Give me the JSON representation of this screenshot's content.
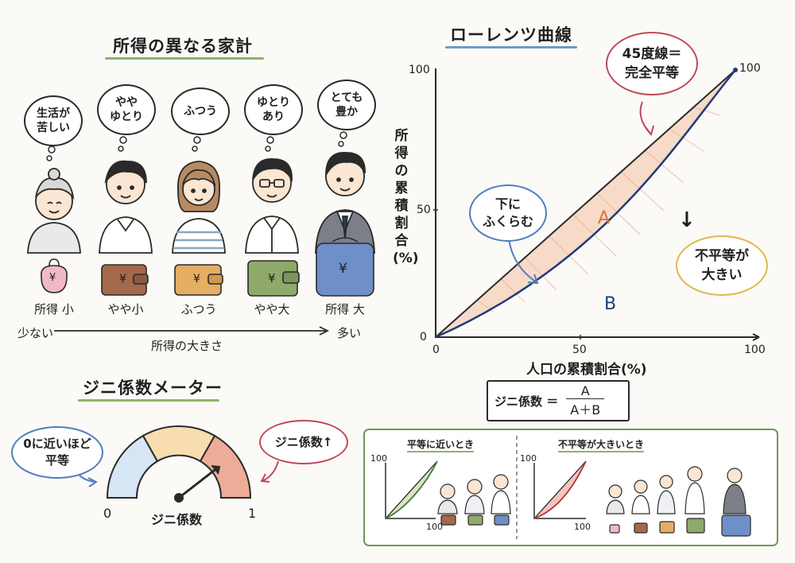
{
  "left_panel": {
    "title": "所得の異なる家計",
    "people": [
      {
        "thought": "生活が\n苦しい",
        "label": "所得 小"
      },
      {
        "thought": "やや\nゆとり",
        "label": "やや小"
      },
      {
        "thought": "ふつう",
        "label": "ふつう"
      },
      {
        "thought": "ゆとり\nあり",
        "label": "やや大"
      },
      {
        "thought": "とても\n豊か",
        "label": "所得 大"
      }
    ],
    "axis_left": "少ない",
    "axis_center": "所得の大きさ",
    "axis_right": "多い",
    "currency": "¥"
  },
  "lorenz": {
    "title": "ローレンツ曲線",
    "y_label": "所得の累積割合(%)",
    "x_label": "人口の累積割合(%)",
    "x_ticks": [
      "0",
      "50",
      "100"
    ],
    "y_ticks": [
      "0",
      "50",
      "100"
    ],
    "top_end_label": "100",
    "equality_bubble": "45度線＝\n完全平等",
    "bulge_bubble": "下に\nふくらむ",
    "inequality_arrow": "↓",
    "inequality_bubble": "不平等が\n大きい",
    "area_a": "A",
    "area_b": "B",
    "formula_label": "ジニ係数 ＝",
    "formula_num": "A",
    "formula_den": "A＋B"
  },
  "gini_meter": {
    "title": "ジニ係数メーター",
    "min_label": "0",
    "max_label": "1",
    "center_label": "ジニ係数",
    "low_bubble": "0に近いほど\n平等",
    "high_bubble": "ジニ係数↑",
    "needle_value": 0.78,
    "colors": [
      "#d6e6f4",
      "#f7ddb0",
      "#ecac98"
    ]
  },
  "comparison": {
    "left_title": "平等に近いとき",
    "right_title": "不平等が大きいとき",
    "axis_max_y": "100",
    "axis_max_x": "100"
  },
  "colors": {
    "green_underline": "#8fb36a",
    "blue_underline": "#6f99c8",
    "curve": "#1f3c78",
    "area_fill": "#f6d3c0",
    "green_frame": "#6f9a52"
  }
}
